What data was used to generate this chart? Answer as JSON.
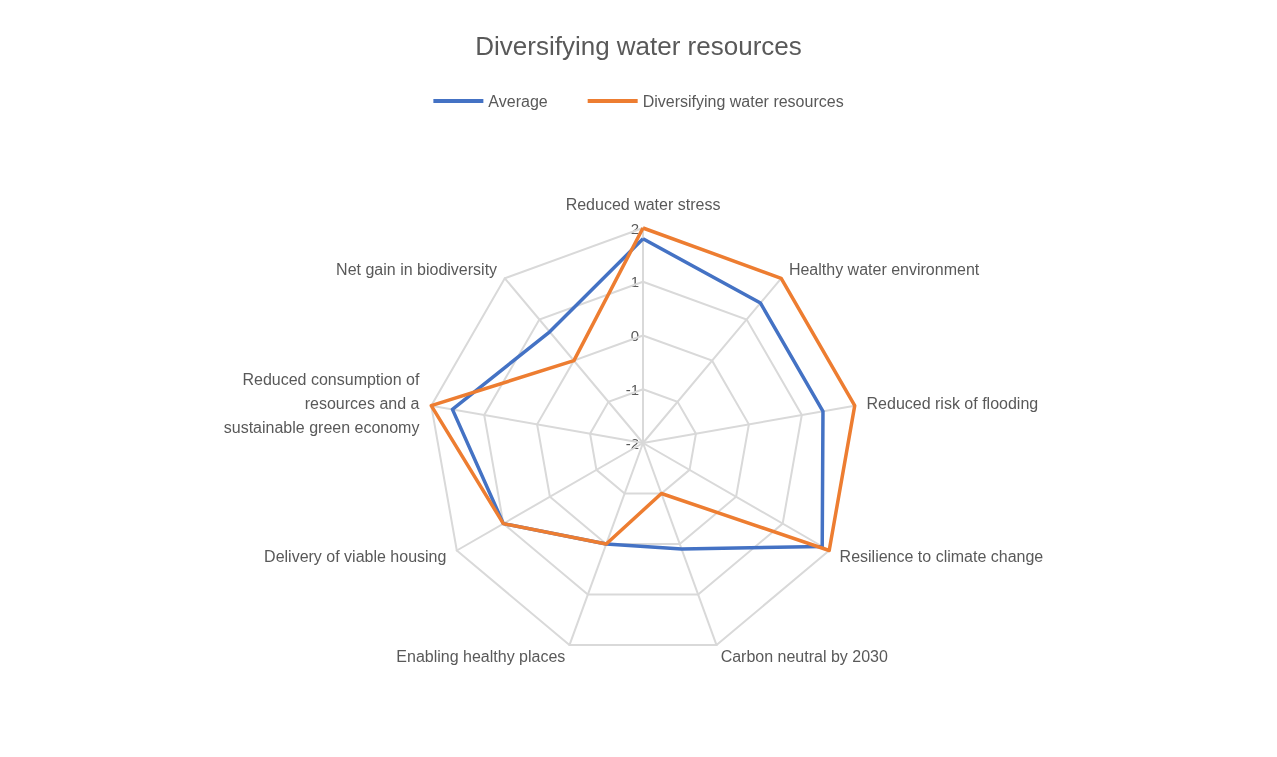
{
  "chart_data": {
    "type": "radar",
    "title": "Diversifying water resources",
    "legend": "top",
    "marker": "none",
    "line_style": "solid",
    "grid": true,
    "categories": [
      "Reduced water stress",
      "Healthy water environment",
      "Reduced risk of flooding",
      "Resilience to climate change",
      "Carbon neutral by 2030",
      "Enabling healthy places",
      "Delivery of viable housing",
      "Reduced consumption of resources and a sustainable green economy",
      "Net gain in biodiversity"
    ],
    "ylim": [
      -2,
      2
    ],
    "yticks": [
      -2,
      -1,
      0,
      1,
      2
    ],
    "series": [
      {
        "name": "Average",
        "color": "#4472c4",
        "values": [
          1.8,
          1.4,
          1.4,
          1.85,
          0.1,
          0,
          1,
          1.6,
          0.7
        ]
      },
      {
        "name": "Diversifying water resources",
        "color": "#ed7d31",
        "values": [
          2,
          2,
          2,
          2,
          -1,
          0,
          1,
          2,
          0
        ]
      }
    ]
  }
}
